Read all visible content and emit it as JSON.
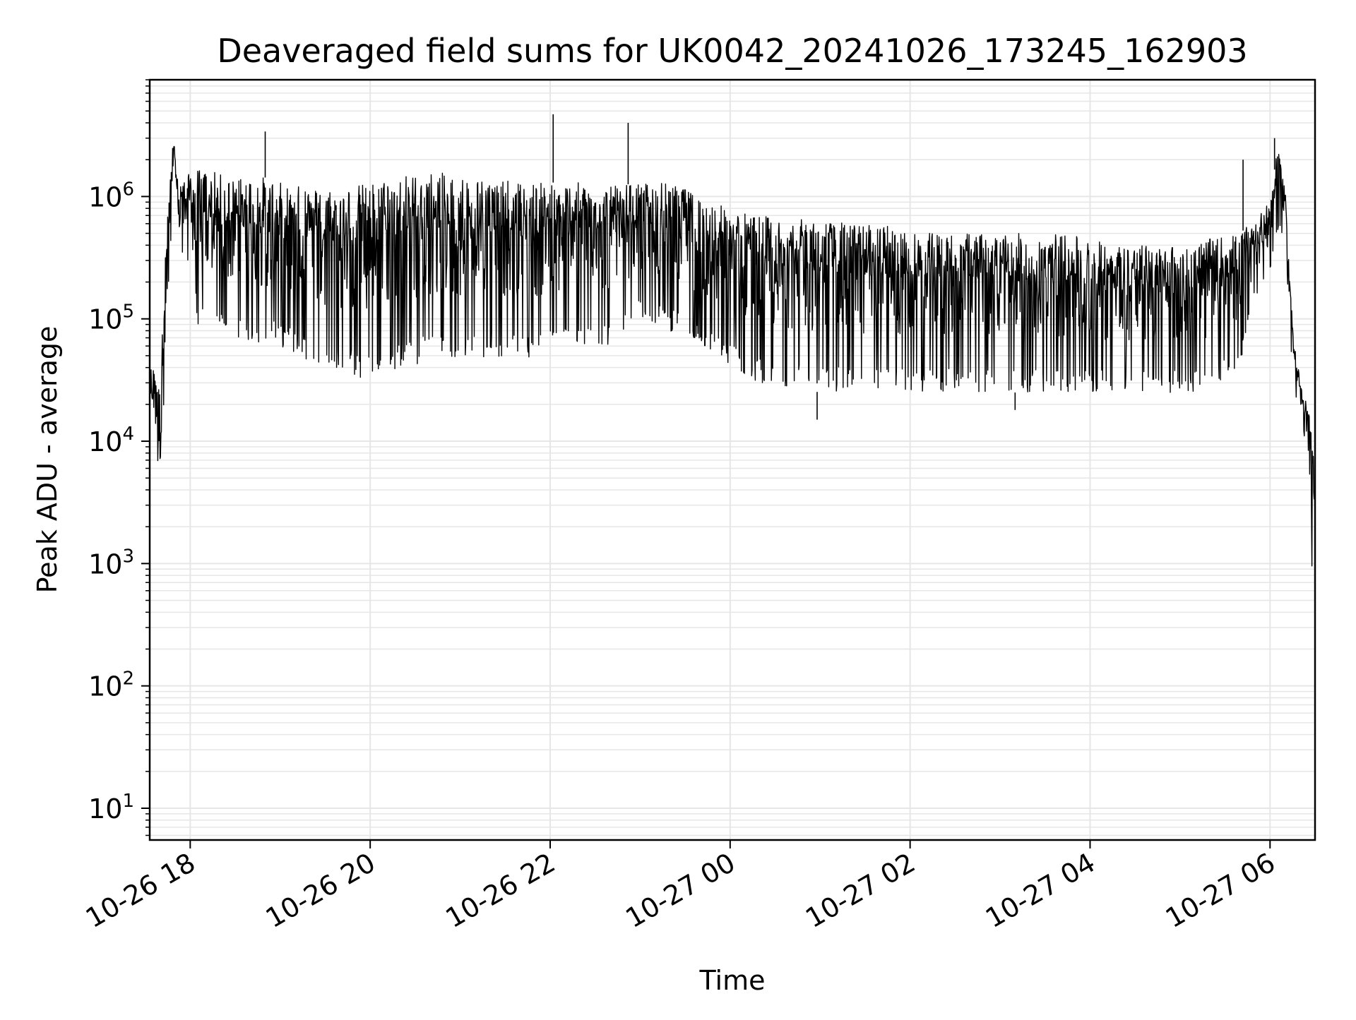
{
  "chart_data": {
    "type": "line",
    "title": "Deaveraged field sums for UK0042_20241026_173245_162903",
    "xlabel": "Time",
    "ylabel": "Peak ADU - average",
    "y_scale": "log",
    "grid": true,
    "colors": {
      "line": "#000000",
      "grid": "#e6e6e6",
      "axes": "#000000"
    },
    "xlim": [
      "2024-10-26 17:33",
      "2024-10-27 06:30"
    ],
    "ylim": [
      5.5,
      9000000
    ],
    "x_ticks": [
      {
        "value": "2024-10-26 18:00",
        "label": "10-26 18"
      },
      {
        "value": "2024-10-26 20:00",
        "label": "10-26 20"
      },
      {
        "value": "2024-10-26 22:00",
        "label": "10-26 22"
      },
      {
        "value": "2024-10-27 00:00",
        "label": "10-27 00"
      },
      {
        "value": "2024-10-27 02:00",
        "label": "10-27 02"
      },
      {
        "value": "2024-10-27 04:00",
        "label": "10-27 04"
      },
      {
        "value": "2024-10-27 06:00",
        "label": "10-27 06"
      }
    ],
    "y_ticks": [
      {
        "value": 10,
        "base": "10",
        "exp": "1"
      },
      {
        "value": 100,
        "base": "10",
        "exp": "2"
      },
      {
        "value": 1000,
        "base": "10",
        "exp": "3"
      },
      {
        "value": 10000,
        "base": "10",
        "exp": "4"
      },
      {
        "value": 100000,
        "base": "10",
        "exp": "5"
      },
      {
        "value": 1000000,
        "base": "10",
        "exp": "6"
      }
    ],
    "series": [
      {
        "x": [
          "2024-10-26 17:33",
          "2024-10-26 17:36",
          "2024-10-26 17:40",
          "2024-10-26 17:43",
          "2024-10-26 17:46",
          "2024-10-26 17:48",
          "2024-10-26 17:50",
          "2024-10-26 17:52",
          "2024-10-26 17:55",
          "2024-10-26 17:58",
          "2024-10-26 18:05",
          "2024-10-26 18:15",
          "2024-10-26 18:30",
          "2024-10-26 18:45",
          "2024-10-26 19:00",
          "2024-10-26 19:20",
          "2024-10-26 19:40",
          "2024-10-26 20:00",
          "2024-10-26 20:20",
          "2024-10-26 20:40",
          "2024-10-26 21:00",
          "2024-10-26 21:20",
          "2024-10-26 21:40",
          "2024-10-26 22:00",
          "2024-10-26 22:20",
          "2024-10-26 22:40",
          "2024-10-26 23:00",
          "2024-10-26 23:20",
          "2024-10-26 23:40",
          "2024-10-27 00:00",
          "2024-10-27 00:20",
          "2024-10-27 00:40",
          "2024-10-27 01:00",
          "2024-10-27 01:20",
          "2024-10-27 01:40",
          "2024-10-27 02:00",
          "2024-10-27 02:20",
          "2024-10-27 02:40",
          "2024-10-27 03:00",
          "2024-10-27 03:20",
          "2024-10-27 03:40",
          "2024-10-27 04:00",
          "2024-10-27 04:20",
          "2024-10-27 04:40",
          "2024-10-27 05:00",
          "2024-10-27 05:20",
          "2024-10-27 05:40",
          "2024-10-27 05:50",
          "2024-10-27 06:00",
          "2024-10-27 06:05",
          "2024-10-27 06:10",
          "2024-10-27 06:15",
          "2024-10-27 06:20",
          "2024-10-27 06:25",
          "2024-10-27 06:30"
        ],
        "upper": [
          40000,
          40000,
          25000,
          300000,
          1100000,
          2500000,
          3000000,
          1500000,
          1300000,
          1500000,
          1700000,
          1600000,
          1400000,
          1500000,
          1300000,
          1200000,
          1200000,
          1300000,
          1500000,
          1600000,
          1500000,
          1400000,
          1300000,
          1300000,
          1300000,
          1200000,
          1300000,
          1300000,
          1000000,
          800000,
          700000,
          650000,
          650000,
          600000,
          600000,
          500000,
          500000,
          500000,
          500000,
          500000,
          500000,
          450000,
          400000,
          400000,
          400000,
          450000,
          500000,
          650000,
          900000,
          2500000,
          1200000,
          100000,
          30000,
          20000,
          8000
        ],
        "lower": [
          10000,
          18000,
          3000,
          8000,
          300000,
          500000,
          400000,
          300000,
          300000,
          300000,
          90000,
          80000,
          70000,
          60000,
          60000,
          45000,
          35000,
          30000,
          40000,
          45000,
          45000,
          50000,
          45000,
          50000,
          60000,
          60000,
          100000,
          80000,
          60000,
          40000,
          30000,
          28000,
          25000,
          25000,
          25000,
          25000,
          25000,
          25000,
          25000,
          25000,
          25000,
          25000,
          25000,
          25000,
          25000,
          25000,
          40000,
          150000,
          250000,
          500000,
          500000,
          30000,
          15000,
          8000,
          200
        ],
        "spikes": [
          {
            "x": "2024-10-26 18:50",
            "value": 3400000
          },
          {
            "x": "2024-10-26 22:02",
            "value": 4700000
          },
          {
            "x": "2024-10-26 22:52",
            "value": 4000000
          },
          {
            "x": "2024-10-27 00:58",
            "value": 15000
          },
          {
            "x": "2024-10-27 03:10",
            "value": 18000
          },
          {
            "x": "2024-10-27 05:42",
            "value": 2000000
          },
          {
            "x": "2024-10-27 06:03",
            "value": 3000000
          }
        ]
      }
    ]
  }
}
